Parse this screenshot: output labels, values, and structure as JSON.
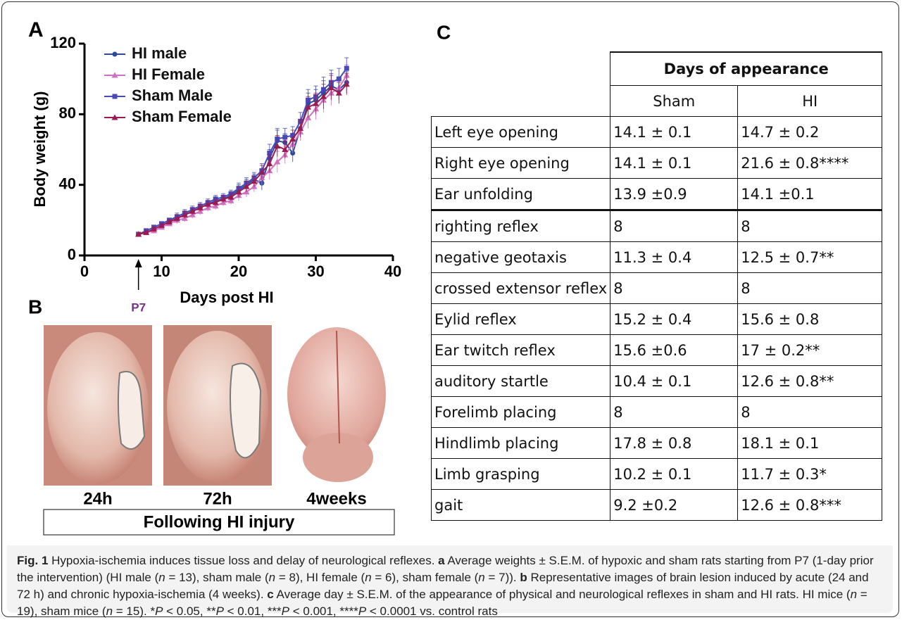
{
  "chart_data": {
    "type": "line",
    "panel": "A",
    "xlabel": "Days post HI",
    "ylabel": "Body weight (g)",
    "annotation": "P7",
    "x": [
      7,
      8,
      9,
      10,
      11,
      12,
      13,
      14,
      15,
      16,
      17,
      18,
      19,
      20,
      21,
      22,
      23,
      24,
      25,
      26,
      27,
      28,
      29,
      30,
      31,
      32,
      33,
      34
    ],
    "series": [
      {
        "name": "HI male",
        "color": "#2e4a9e",
        "marker": "circle",
        "values": [
          12,
          13,
          15,
          17,
          19,
          21,
          23,
          25,
          27,
          29,
          31,
          32,
          34,
          37,
          40,
          43,
          41,
          55,
          65,
          64,
          58,
          72,
          86,
          88,
          92,
          96,
          94,
          98
        ],
        "errors": [
          1,
          1,
          1,
          1,
          1,
          2,
          2,
          2,
          2,
          2,
          2,
          2,
          2,
          3,
          3,
          3,
          4,
          5,
          6,
          5,
          5,
          5,
          6,
          6,
          7,
          7,
          6,
          6
        ]
      },
      {
        "name": "HI Female",
        "color": "#d070c0",
        "marker": "triangle",
        "values": [
          12,
          13,
          14,
          16,
          18,
          20,
          21,
          23,
          25,
          27,
          28,
          30,
          31,
          34,
          36,
          39,
          44,
          48,
          53,
          57,
          63,
          70,
          78,
          83,
          88,
          92,
          95,
          102
        ],
        "errors": [
          1,
          1,
          1,
          1,
          1,
          2,
          2,
          2,
          2,
          2,
          2,
          2,
          2,
          3,
          3,
          3,
          4,
          5,
          6,
          5,
          5,
          5,
          6,
          6,
          7,
          7,
          6,
          6
        ]
      },
      {
        "name": "Sham Male",
        "color": "#4848b8",
        "marker": "square",
        "values": [
          12,
          14,
          16,
          18,
          20,
          22,
          24,
          26,
          28,
          30,
          32,
          33,
          35,
          38,
          41,
          44,
          48,
          58,
          66,
          67,
          68,
          76,
          88,
          90,
          94,
          98,
          100,
          106
        ],
        "errors": [
          1,
          1,
          1,
          1,
          1,
          2,
          2,
          2,
          2,
          2,
          2,
          2,
          2,
          3,
          3,
          3,
          4,
          5,
          6,
          5,
          5,
          5,
          6,
          6,
          7,
          7,
          6,
          6
        ]
      },
      {
        "name": "Sham Female",
        "color": "#9b1b50",
        "marker": "triangle",
        "values": [
          12,
          13,
          15,
          17,
          19,
          21,
          23,
          25,
          27,
          29,
          30,
          32,
          33,
          36,
          39,
          42,
          47,
          52,
          62,
          60,
          66,
          72,
          84,
          86,
          90,
          95,
          92,
          97
        ],
        "errors": [
          1,
          1,
          1,
          1,
          1,
          2,
          2,
          2,
          2,
          2,
          2,
          2,
          2,
          3,
          3,
          3,
          4,
          5,
          6,
          5,
          5,
          5,
          6,
          6,
          7,
          7,
          6,
          6
        ]
      }
    ],
    "xlim": [
      0,
      40
    ],
    "xticks": [
      0,
      10,
      20,
      30,
      40
    ],
    "ylim": [
      0,
      120
    ],
    "yticks": [
      0,
      40,
      80,
      120
    ],
    "legend": "upper left"
  },
  "images": {
    "panel": "B",
    "labels": [
      "24h",
      "72h",
      "4weeks"
    ],
    "caption": "Following HI injury"
  },
  "table": {
    "panel": "C",
    "header": "Days of appearance",
    "columns": [
      "Sham",
      "HI"
    ],
    "rows": [
      [
        "Left eye opening",
        "14.1 ± 0.1",
        "14.7 ± 0.2"
      ],
      [
        "Right eye opening",
        "14.1 ± 0.1",
        "21.6 ± 0.8****"
      ],
      [
        "Ear unfolding",
        "13.9 ±0.9",
        "14.1 ±0.1"
      ],
      [
        "righting reflex",
        "8",
        "8"
      ],
      [
        "negative geotaxis",
        "11.3 ± 0.4",
        "12.5 ± 0.7**"
      ],
      [
        "crossed extensor reflex",
        "8",
        "8"
      ],
      [
        "Eylid reflex",
        "15.2 ± 0.4",
        "15.6 ± 0.8"
      ],
      [
        "Ear twitch reflex",
        "15.6 ±0.6",
        "17 ± 0.2**"
      ],
      [
        "auditory startle",
        "10.4 ± 0.1",
        "12.6 ± 0.8**"
      ],
      [
        "Forelimb placing",
        "8",
        "8"
      ],
      [
        "Hindlimb placing",
        "17.8 ± 0.8",
        "18.1 ± 0.1"
      ],
      [
        "Limb grasping",
        "10.2 ± 0.1",
        "11.7 ± 0.3*"
      ],
      [
        "gait",
        "9.2 ±0.2",
        "12.6 ± 0.8***"
      ]
    ]
  },
  "caption": [
    {
      "text": "Fig. 1",
      "style": "bold"
    },
    {
      "text": " Hypoxia-ischemia induces tissue loss and delay of neurological reflexes. ",
      "style": "normal"
    },
    {
      "text": "a",
      "style": "bold"
    },
    {
      "text": " Average weights ± S.E.M. of hypoxic and sham rats starting from P7 (1-day prior the intervention) (HI male (",
      "style": "normal"
    },
    {
      "text": "n",
      "style": "italic"
    },
    {
      "text": " = 13), sham male (",
      "style": "normal"
    },
    {
      "text": "n",
      "style": "italic"
    },
    {
      "text": " = 8), HI female (",
      "style": "normal"
    },
    {
      "text": "n",
      "style": "italic"
    },
    {
      "text": " = 6), sham female (",
      "style": "normal"
    },
    {
      "text": "n",
      "style": "italic"
    },
    {
      "text": " = 7)). ",
      "style": "normal"
    },
    {
      "text": "b",
      "style": "bold"
    },
    {
      "text": " Representative images of brain lesion induced by acute (24 and 72 h) and chronic hypoxia-ischemia (4 weeks). ",
      "style": "normal"
    },
    {
      "text": "c",
      "style": "bold"
    },
    {
      "text": " Average day ± S.E.M. of the appearance of physical and neurological reflexes in sham and HI rats. HI mice (",
      "style": "normal"
    },
    {
      "text": "n",
      "style": "italic"
    },
    {
      "text": " = 19), sham mice (",
      "style": "normal"
    },
    {
      "text": "n",
      "style": "italic"
    },
    {
      "text": " = 15). *",
      "style": "normal"
    },
    {
      "text": "P",
      "style": "italic"
    },
    {
      "text": " < 0.05, **",
      "style": "normal"
    },
    {
      "text": "P",
      "style": "italic"
    },
    {
      "text": " < 0.01, ***",
      "style": "normal"
    },
    {
      "text": "P",
      "style": "italic"
    },
    {
      "text": " < 0.001, ****",
      "style": "normal"
    },
    {
      "text": "P",
      "style": "italic"
    },
    {
      "text": " < 0.0001 vs. control rats",
      "style": "normal"
    }
  ]
}
